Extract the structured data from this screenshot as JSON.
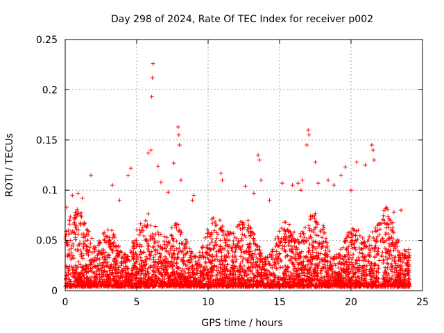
{
  "chart_data": {
    "type": "scatter",
    "title": "Day 298 of 2024, Rate Of TEC Index for receiver p002",
    "xlabel": "GPS time / hours",
    "ylabel": "ROTI / TECUs",
    "xlim": [
      0,
      25
    ],
    "ylim": [
      0,
      0.25
    ],
    "x_ticks": [
      0,
      5,
      10,
      15,
      20,
      25
    ],
    "y_ticks": [
      0,
      0.05,
      0.1,
      0.15,
      0.2,
      0.25
    ],
    "x_tick_labels": [
      "0",
      "5",
      "10",
      "15",
      "20",
      "25"
    ],
    "y_tick_labels": [
      "0",
      "0.05",
      "0.1",
      "0.15",
      "0.2",
      "0.25"
    ],
    "grid": true,
    "marker": "+",
    "color": "#ff0000",
    "series": [
      {
        "name": "p002",
        "points": [
          [
            0.1,
            0.083
          ],
          [
            0.5,
            0.095
          ],
          [
            0.9,
            0.097
          ],
          [
            1.2,
            0.092
          ],
          [
            1.8,
            0.115
          ],
          [
            3.3,
            0.105
          ],
          [
            3.8,
            0.09
          ],
          [
            4.4,
            0.115
          ],
          [
            4.6,
            0.122
          ],
          [
            5.8,
            0.137
          ],
          [
            6.0,
            0.14
          ],
          [
            6.05,
            0.193
          ],
          [
            6.1,
            0.212
          ],
          [
            6.15,
            0.226
          ],
          [
            6.5,
            0.124
          ],
          [
            6.7,
            0.108
          ],
          [
            7.2,
            0.098
          ],
          [
            7.6,
            0.127
          ],
          [
            7.9,
            0.163
          ],
          [
            7.95,
            0.155
          ],
          [
            8.0,
            0.145
          ],
          [
            8.1,
            0.11
          ],
          [
            8.9,
            0.09
          ],
          [
            9.0,
            0.095
          ],
          [
            10.9,
            0.117
          ],
          [
            11.0,
            0.11
          ],
          [
            12.6,
            0.104
          ],
          [
            13.2,
            0.097
          ],
          [
            13.5,
            0.135
          ],
          [
            13.6,
            0.13
          ],
          [
            13.7,
            0.11
          ],
          [
            14.3,
            0.09
          ],
          [
            15.2,
            0.107
          ],
          [
            15.9,
            0.105
          ],
          [
            16.3,
            0.107
          ],
          [
            16.5,
            0.1
          ],
          [
            16.6,
            0.11
          ],
          [
            16.9,
            0.145
          ],
          [
            17.0,
            0.16
          ],
          [
            17.05,
            0.155
          ],
          [
            17.5,
            0.128
          ],
          [
            17.7,
            0.107
          ],
          [
            18.4,
            0.11
          ],
          [
            18.8,
            0.105
          ],
          [
            19.3,
            0.115
          ],
          [
            19.6,
            0.123
          ],
          [
            20.0,
            0.1
          ],
          [
            20.4,
            0.128
          ],
          [
            21.0,
            0.125
          ],
          [
            21.45,
            0.145
          ],
          [
            21.55,
            0.14
          ],
          [
            21.6,
            0.13
          ],
          [
            22.5,
            0.083
          ],
          [
            23.0,
            0.078
          ],
          [
            23.5,
            0.08
          ]
        ]
      }
    ]
  }
}
